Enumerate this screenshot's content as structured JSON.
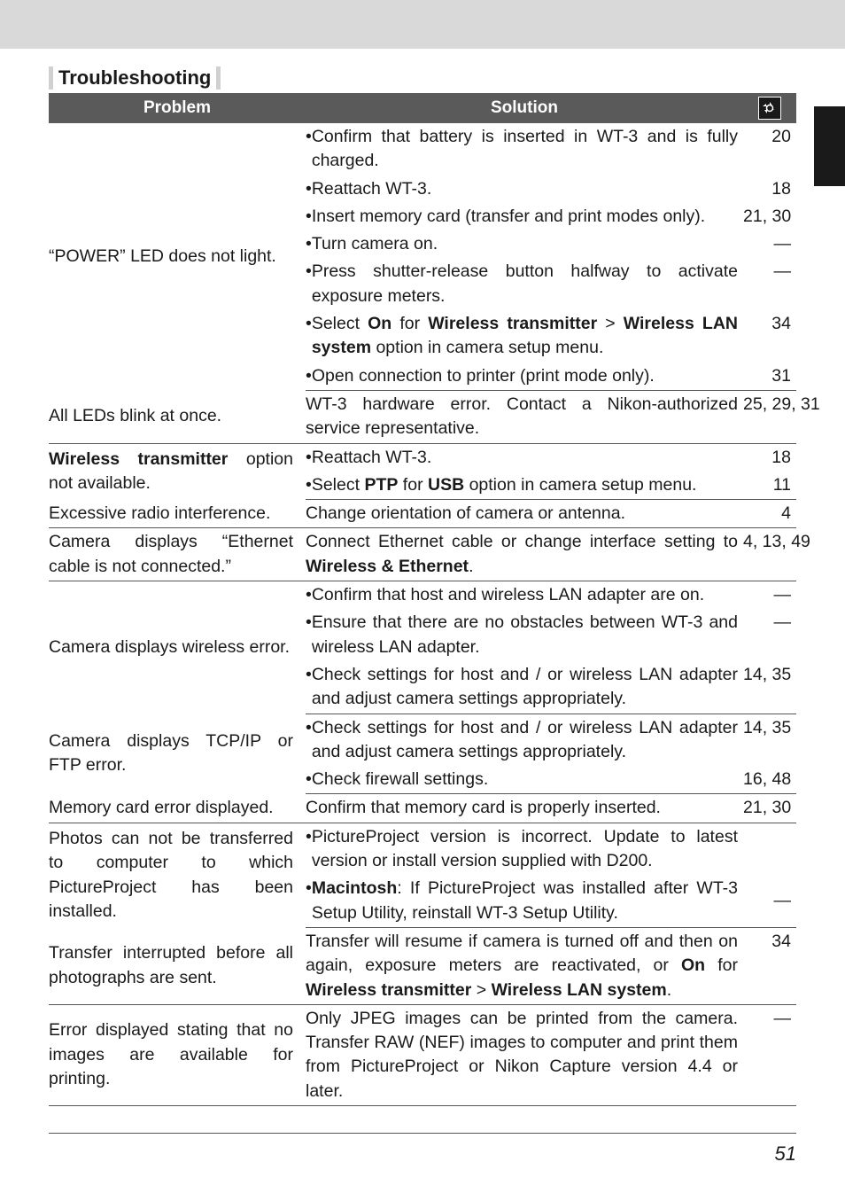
{
  "page_number": "51",
  "section_title": "Troubleshooting",
  "colors": {
    "header_bg": "#5a5a5a",
    "header_fg": "#ffffff",
    "border": "#555555",
    "topbar": "#d9d9d9",
    "thumb": "#1a1a1a"
  },
  "table": {
    "headers": {
      "problem": "Problem",
      "solution": "Solution",
      "ref_symbol": "⭮"
    },
    "col_widths": {
      "problem": 290,
      "ref": 60
    }
  },
  "rows": [
    {
      "problem_html": "“POWER” LED does not light.",
      "solution_lines": [
        {
          "text_html": "Confirm that battery is inserted in WT-3 and is fully charged.",
          "bullet": true,
          "ref": "20"
        },
        {
          "text_html": "Reattach WT-3.",
          "bullet": true,
          "ref": "18"
        },
        {
          "text_html": "Insert memory card (transfer and print modes only).",
          "bullet": true,
          "ref": "21, 30"
        },
        {
          "text_html": "Turn camera on.",
          "bullet": true,
          "ref": "—"
        },
        {
          "text_html": "Press shutter-release button halfway to activate exposure meters.",
          "bullet": true,
          "ref": "—"
        },
        {
          "text_html": "Select <span class=\"b\">On</span> for <span class=\"b\">Wireless transmitter</span> > <span class=\"b\">Wireless LAN system</span> option in camera setup menu.",
          "bullet": true,
          "ref": "34"
        },
        {
          "text_html": "Open connection to printer (print mode only).",
          "bullet": true,
          "ref": "31"
        }
      ]
    },
    {
      "problem_html": "All LEDs blink at once.",
      "solution_lines": [
        {
          "text_html": "WT-3 hardware error.  Contact a Nikon-authorized service representative.",
          "bullet": false,
          "ref": "25, 29, 31"
        }
      ]
    },
    {
      "problem_html": "<span class=\"b\">Wireless transmitter</span> option not available.",
      "solution_lines": [
        {
          "text_html": "Reattach WT-3.",
          "bullet": true,
          "ref": "18"
        },
        {
          "text_html": "Select <span class=\"b\">PTP</span> for <span class=\"b\">USB</span> option in camera setup menu.",
          "bullet": true,
          "ref": "11"
        }
      ]
    },
    {
      "problem_html": "Excessive radio interference.",
      "solution_lines": [
        {
          "text_html": "Change orientation of camera or antenna.",
          "bullet": false,
          "ref": "4"
        }
      ]
    },
    {
      "problem_html": "Camera displays “Ethernet cable is not connected.”",
      "solution_lines": [
        {
          "text_html": "Connect Ethernet cable or change interface setting to <span class=\"b\">Wireless &amp; Ethernet</span>.",
          "bullet": false,
          "ref": "4, 13, 49"
        }
      ]
    },
    {
      "problem_html": "Camera displays wireless error.",
      "solution_lines": [
        {
          "text_html": "Confirm that host and wireless LAN adapter are on.",
          "bullet": true,
          "ref": "—"
        },
        {
          "text_html": "Ensure that there are no obstacles between WT-3 and wireless LAN adapter.",
          "bullet": true,
          "ref": "—"
        },
        {
          "text_html": "Check settings for host and / or wireless LAN adapter and adjust camera settings appropriately.",
          "bullet": true,
          "ref": "14, 35"
        }
      ]
    },
    {
      "problem_html": "Camera displays TCP/IP or FTP error.",
      "solution_lines": [
        {
          "text_html": "Check settings for host and / or wireless LAN adapter and adjust camera settings appropriately.",
          "bullet": true,
          "ref": "14, 35"
        },
        {
          "text_html": "Check firewall settings.",
          "bullet": true,
          "ref": "16, 48"
        }
      ]
    },
    {
      "problem_html": "Memory card error displayed.",
      "solution_lines": [
        {
          "text_html": "Confirm that memory card is properly inserted.",
          "bullet": false,
          "ref": "21, 30"
        }
      ]
    },
    {
      "problem_html": "Photos can not be transferred to computer to which PictureProject has been installed.",
      "solution_lines": [
        {
          "text_html": "PictureProject version is incorrect.  Update to latest version or install version supplied with D200.",
          "bullet": true,
          "ref": ""
        },
        {
          "text_html": "<span class=\"b\">Macintosh</span>: If PictureProject was installed after WT-3 Setup Utility, reinstall WT-3 Setup Utility.",
          "bullet": true,
          "ref": "—",
          "ref_valign": "middle"
        }
      ],
      "problem_justify": true
    },
    {
      "problem_html": "Transfer interrupted before all photographs are sent.",
      "solution_lines": [
        {
          "text_html": "Transfer will resume if camera is turned off and then on again, exposure meters are reactivated, or <span class=\"b\">On</span> for <span class=\"b\">Wireless transmitter</span> > <span class=\"b\">Wireless LAN system</span>.",
          "bullet": false,
          "ref": "34"
        }
      ]
    },
    {
      "problem_html": "Error displayed stating that no images are available for printing.",
      "solution_lines": [
        {
          "text_html": "Only JPEG images can be printed from the camera.  Transfer RAW (NEF) images to computer and print them from PictureProject or Nikon Capture version 4.4 or later.",
          "bullet": false,
          "ref": "—"
        }
      ]
    }
  ]
}
